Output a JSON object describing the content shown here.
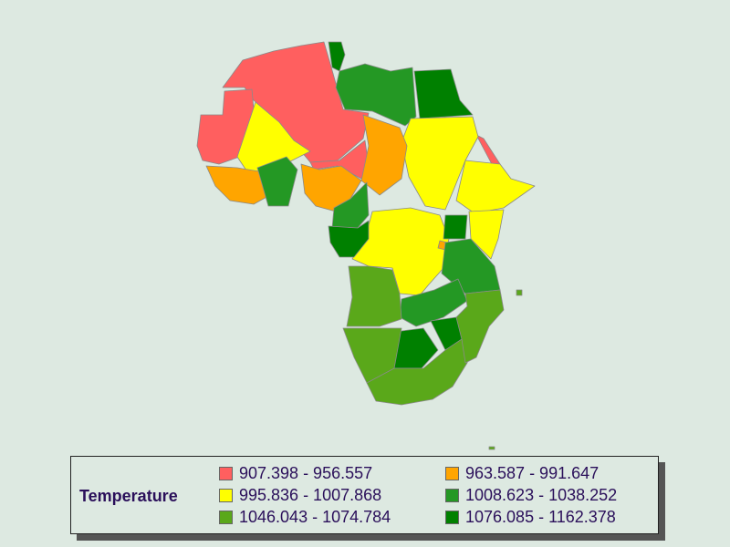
{
  "colors": {
    "background": "#dde9e1",
    "c1": "#ff5f5f",
    "c2": "#ffa500",
    "c3": "#ffff00",
    "c4": "#249824",
    "c5": "#5aa81a",
    "c6": "#008000"
  },
  "legend": {
    "title": "Temperature",
    "items": [
      {
        "label": "907.398 - 956.557",
        "color": "#ff5f5f"
      },
      {
        "label": "963.587 - 991.647",
        "color": "#ffa500"
      },
      {
        "label": "995.836 - 1007.868",
        "color": "#ffff00"
      },
      {
        "label": "1008.623 - 1038.252",
        "color": "#249824"
      },
      {
        "label": "1046.043 - 1074.784",
        "color": "#5aa81a"
      },
      {
        "label": "1076.085 - 1162.378",
        "color": "#008000"
      }
    ]
  }
}
